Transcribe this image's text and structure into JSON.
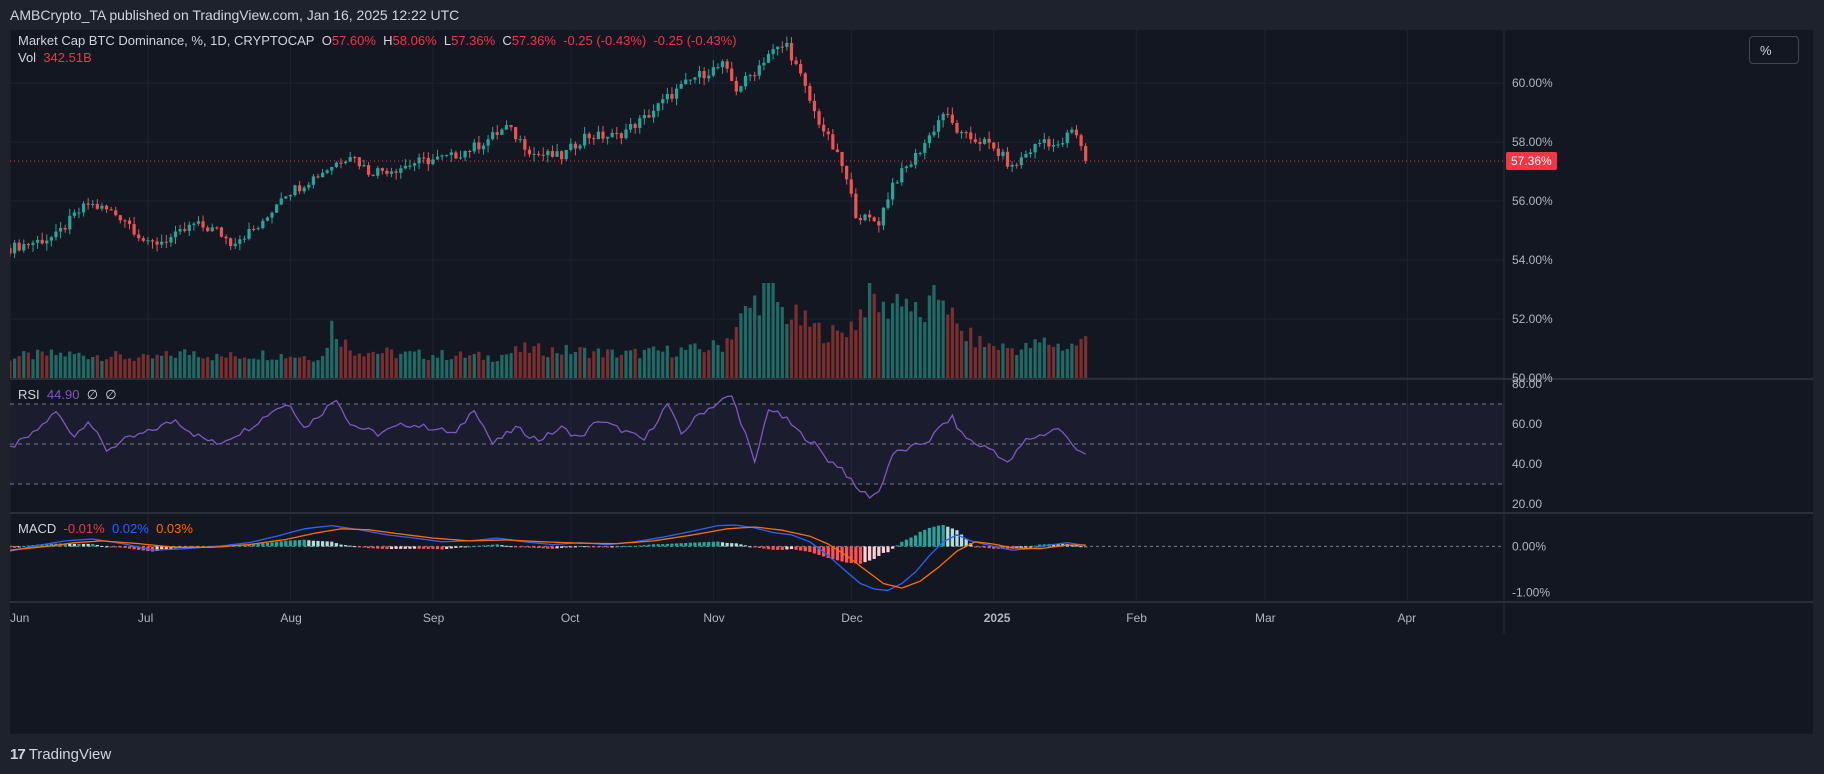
{
  "header": {
    "published": "AMBCrypto_TA published on TradingView.com, Jan 16, 2025 12:22 UTC"
  },
  "toolbar": {
    "percent_label": "%"
  },
  "footer": {
    "logo_text": "TradingView",
    "logo_mark": "17"
  },
  "legend": {
    "symbol": "Market Cap BTC Dominance, %, 1D, CRYPTOCAP",
    "o_label": "O",
    "o_value": "57.60%",
    "h_label": "H",
    "h_value": "58.06%",
    "l_label": "L",
    "l_value": "57.36%",
    "c_label": "C",
    "c_value": "57.36%",
    "change1": "-0.25 (-0.43%)",
    "change2": "-0.25 (-0.43%)",
    "vol_label": "Vol",
    "vol_value": "342.51B",
    "rsi_label": "RSI",
    "rsi_value": "44.90",
    "rsi_extra1": "∅",
    "rsi_extra2": "∅",
    "macd_label": "MACD",
    "macd_hist": "-0.01%",
    "macd_line": "0.02%",
    "macd_signal": "0.03%"
  },
  "colors": {
    "up": "#26a69a",
    "down": "#ef5350",
    "vol_up": "#1e6b66",
    "vol_down": "#7a2e2e",
    "rsi": "#7e57c2",
    "macd": "#2962ff",
    "signal": "#ff6d00",
    "last_price": "#f23645"
  },
  "chart_data": {
    "type": "candlestick",
    "last_price_label": "57.36%",
    "price_axis": {
      "range": [
        50,
        61.8
      ],
      "ticks": [
        "60.00%",
        "58.00%",
        "56.00%",
        "54.00%",
        "52.00%",
        "50.00%"
      ],
      "tick_values": [
        60,
        58,
        56,
        54,
        52,
        50
      ]
    },
    "rsi_axis": {
      "range": [
        16,
        82
      ],
      "ticks": [
        "80.00",
        "60.00",
        "40.00",
        "20.00"
      ],
      "tick_values": [
        80,
        60,
        40,
        20
      ],
      "bands": [
        70,
        50,
        30
      ]
    },
    "macd_axis": {
      "range": [
        -1.2,
        0.7
      ],
      "ticks": [
        "0.00%",
        "-1.00%"
      ],
      "tick_values": [
        0,
        -1
      ]
    },
    "x_axis": {
      "labels": [
        "Jun",
        "Jul",
        "Aug",
        "Sep",
        "Oct",
        "Nov",
        "Dec",
        "2025",
        "Feb",
        "Mar",
        "Apr"
      ],
      "label_days": [
        0,
        30,
        61,
        92,
        122,
        153,
        183,
        214,
        245,
        273,
        304
      ],
      "bold": [
        false,
        false,
        false,
        false,
        false,
        false,
        false,
        true,
        false,
        false,
        false
      ],
      "max_day": 325
    },
    "anchors": {
      "close": [
        [
          0,
          54.4
        ],
        [
          10,
          54.8
        ],
        [
          14,
          55.5
        ],
        [
          17,
          55.9
        ],
        [
          21,
          55.7
        ],
        [
          25,
          55.4
        ],
        [
          30,
          54.5
        ],
        [
          36,
          54.8
        ],
        [
          40,
          55.2
        ],
        [
          45,
          55.0
        ],
        [
          48,
          54.6
        ],
        [
          55,
          55.2
        ],
        [
          59,
          56.2
        ],
        [
          63,
          56.5
        ],
        [
          70,
          57.2
        ],
        [
          74,
          57.6
        ],
        [
          78,
          57.0
        ],
        [
          84,
          57.1
        ],
        [
          88,
          57.3
        ],
        [
          92,
          57.4
        ],
        [
          96,
          57.5
        ],
        [
          102,
          57.9
        ],
        [
          108,
          58.5
        ],
        [
          114,
          57.6
        ],
        [
          120,
          57.5
        ],
        [
          125,
          58.2
        ],
        [
          132,
          58.2
        ],
        [
          138,
          58.8
        ],
        [
          143,
          59.5
        ],
        [
          149,
          60.2
        ],
        [
          155,
          60.6
        ],
        [
          158,
          59.8
        ],
        [
          162,
          60.4
        ],
        [
          165,
          61.0
        ],
        [
          169,
          61.3
        ],
        [
          172,
          60.2
        ],
        [
          175,
          59.0
        ],
        [
          178,
          58.1
        ],
        [
          181,
          57.2
        ],
        [
          184,
          55.6
        ],
        [
          186,
          55.4
        ],
        [
          189,
          55.3
        ],
        [
          192,
          56.6
        ],
        [
          196,
          57.3
        ],
        [
          200,
          58.2
        ],
        [
          203,
          59.0
        ],
        [
          207,
          58.2
        ],
        [
          212,
          58.0
        ],
        [
          216,
          57.5
        ],
        [
          218,
          57.1
        ],
        [
          221,
          57.6
        ],
        [
          225,
          58.1
        ],
        [
          228,
          57.8
        ],
        [
          231,
          58.4
        ],
        [
          233,
          57.9
        ],
        [
          234,
          57.36
        ]
      ],
      "rsi": [
        [
          0,
          48
        ],
        [
          5,
          55
        ],
        [
          10,
          66
        ],
        [
          14,
          54
        ],
        [
          17,
          62
        ],
        [
          21,
          47
        ],
        [
          25,
          52
        ],
        [
          30,
          56
        ],
        [
          36,
          62
        ],
        [
          40,
          55
        ],
        [
          45,
          50
        ],
        [
          52,
          58
        ],
        [
          58,
          68
        ],
        [
          61,
          70
        ],
        [
          64,
          58
        ],
        [
          68,
          66
        ],
        [
          71,
          73
        ],
        [
          74,
          60
        ],
        [
          80,
          55
        ],
        [
          86,
          60
        ],
        [
          92,
          58
        ],
        [
          97,
          55
        ],
        [
          101,
          68
        ],
        [
          105,
          50
        ],
        [
          110,
          58
        ],
        [
          115,
          52
        ],
        [
          120,
          58
        ],
        [
          124,
          53
        ],
        [
          128,
          62
        ],
        [
          132,
          58
        ],
        [
          138,
          52
        ],
        [
          143,
          70
        ],
        [
          146,
          55
        ],
        [
          150,
          65
        ],
        [
          155,
          72
        ],
        [
          157,
          74
        ],
        [
          160,
          55
        ],
        [
          162,
          40
        ],
        [
          165,
          68
        ],
        [
          169,
          62
        ],
        [
          172,
          55
        ],
        [
          175,
          50
        ],
        [
          178,
          42
        ],
        [
          181,
          38
        ],
        [
          184,
          28
        ],
        [
          187,
          24
        ],
        [
          189,
          26
        ],
        [
          192,
          45
        ],
        [
          196,
          48
        ],
        [
          200,
          52
        ],
        [
          203,
          60
        ],
        [
          205,
          63
        ],
        [
          207,
          55
        ],
        [
          210,
          50
        ],
        [
          214,
          47
        ],
        [
          217,
          40
        ],
        [
          221,
          52
        ],
        [
          225,
          55
        ],
        [
          228,
          58
        ],
        [
          231,
          50
        ],
        [
          234,
          44.9
        ]
      ],
      "macd": [
        [
          0,
          -0.1
        ],
        [
          6,
          0.02
        ],
        [
          12,
          0.12
        ],
        [
          18,
          0.16
        ],
        [
          25,
          0.05
        ],
        [
          31,
          -0.08
        ],
        [
          38,
          -0.05
        ],
        [
          45,
          0.0
        ],
        [
          52,
          0.08
        ],
        [
          58,
          0.22
        ],
        [
          64,
          0.38
        ],
        [
          70,
          0.45
        ],
        [
          76,
          0.36
        ],
        [
          82,
          0.25
        ],
        [
          88,
          0.18
        ],
        [
          94,
          0.1
        ],
        [
          100,
          0.12
        ],
        [
          106,
          0.18
        ],
        [
          112,
          0.1
        ],
        [
          118,
          0.04
        ],
        [
          124,
          0.08
        ],
        [
          130,
          0.04
        ],
        [
          136,
          0.1
        ],
        [
          142,
          0.2
        ],
        [
          148,
          0.32
        ],
        [
          154,
          0.45
        ],
        [
          158,
          0.46
        ],
        [
          162,
          0.4
        ],
        [
          166,
          0.3
        ],
        [
          170,
          0.25
        ],
        [
          174,
          0.1
        ],
        [
          178,
          -0.2
        ],
        [
          182,
          -0.55
        ],
        [
          185,
          -0.8
        ],
        [
          188,
          -0.92
        ],
        [
          191,
          -0.95
        ],
        [
          194,
          -0.8
        ],
        [
          197,
          -0.55
        ],
        [
          200,
          -0.2
        ],
        [
          203,
          0.1
        ],
        [
          206,
          0.25
        ],
        [
          209,
          0.12
        ],
        [
          214,
          0.0
        ],
        [
          218,
          -0.08
        ],
        [
          222,
          -0.05
        ],
        [
          226,
          0.03
        ],
        [
          230,
          0.08
        ],
        [
          234,
          0.02
        ]
      ],
      "signal": [
        [
          0,
          -0.08
        ],
        [
          8,
          0.0
        ],
        [
          14,
          0.08
        ],
        [
          20,
          0.12
        ],
        [
          28,
          0.06
        ],
        [
          36,
          -0.02
        ],
        [
          44,
          -0.02
        ],
        [
          52,
          0.04
        ],
        [
          60,
          0.15
        ],
        [
          66,
          0.28
        ],
        [
          72,
          0.38
        ],
        [
          78,
          0.36
        ],
        [
          84,
          0.28
        ],
        [
          92,
          0.18
        ],
        [
          100,
          0.12
        ],
        [
          108,
          0.14
        ],
        [
          116,
          0.1
        ],
        [
          124,
          0.07
        ],
        [
          132,
          0.06
        ],
        [
          140,
          0.12
        ],
        [
          148,
          0.24
        ],
        [
          156,
          0.38
        ],
        [
          162,
          0.42
        ],
        [
          168,
          0.35
        ],
        [
          174,
          0.22
        ],
        [
          178,
          0.05
        ],
        [
          182,
          -0.2
        ],
        [
          186,
          -0.5
        ],
        [
          190,
          -0.8
        ],
        [
          194,
          -0.9
        ],
        [
          198,
          -0.75
        ],
        [
          202,
          -0.45
        ],
        [
          206,
          -0.1
        ],
        [
          210,
          0.1
        ],
        [
          214,
          0.05
        ],
        [
          218,
          -0.03
        ],
        [
          224,
          -0.05
        ],
        [
          230,
          0.03
        ],
        [
          234,
          0.03
        ]
      ],
      "volume": [
        [
          0,
          0.22
        ],
        [
          10,
          0.25
        ],
        [
          20,
          0.24
        ],
        [
          30,
          0.2
        ],
        [
          40,
          0.28
        ],
        [
          45,
          0.22
        ],
        [
          55,
          0.25
        ],
        [
          68,
          0.22
        ],
        [
          70,
          0.55
        ],
        [
          74,
          0.3
        ],
        [
          85,
          0.25
        ],
        [
          95,
          0.24
        ],
        [
          105,
          0.22
        ],
        [
          112,
          0.3
        ],
        [
          125,
          0.28
        ],
        [
          133,
          0.25
        ],
        [
          142,
          0.28
        ],
        [
          150,
          0.3
        ],
        [
          155,
          0.35
        ],
        [
          158,
          0.55
        ],
        [
          162,
          0.8
        ],
        [
          165,
          1.0
        ],
        [
          168,
          0.7
        ],
        [
          172,
          0.6
        ],
        [
          176,
          0.5
        ],
        [
          180,
          0.45
        ],
        [
          184,
          0.6
        ],
        [
          187,
          0.9
        ],
        [
          190,
          0.7
        ],
        [
          194,
          0.9
        ],
        [
          198,
          0.6
        ],
        [
          203,
          0.92
        ],
        [
          206,
          0.5
        ],
        [
          212,
          0.35
        ],
        [
          220,
          0.3
        ],
        [
          225,
          0.38
        ],
        [
          230,
          0.32
        ],
        [
          234,
          0.4
        ]
      ]
    }
  }
}
